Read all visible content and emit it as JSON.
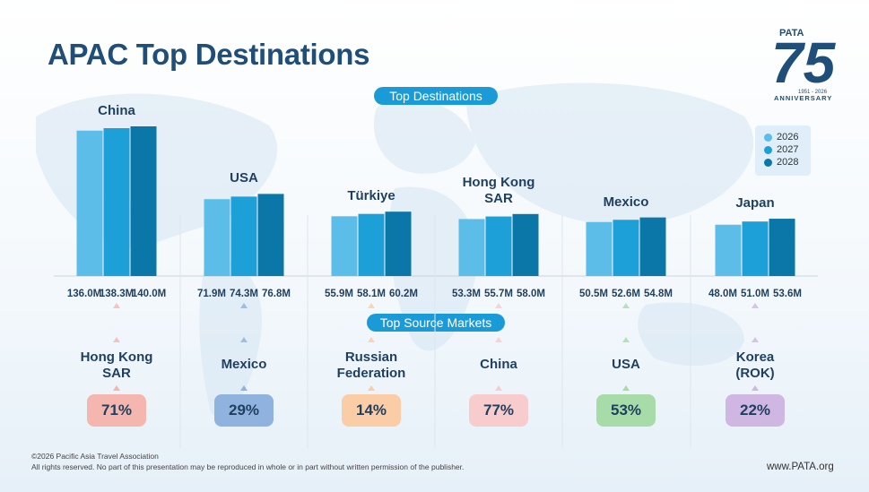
{
  "slide": {
    "title": "APAC Top Destinations",
    "top_destinations_label": "Top Destinations",
    "top_source_markets_label": "Top Source Markets",
    "logo": {
      "brand": "PATA",
      "number": "75",
      "years": "1951 - 2026",
      "word": "ANNIVERSARY"
    },
    "copyright": "©2026 Pacific Asia Travel Association",
    "rights": "All rights reserved. No part of this presentation may be reproduced in whole or in part without written permission of the publisher.",
    "url": "www.PATA.org"
  },
  "chart_data": {
    "type": "bar",
    "categories": [
      "China",
      "USA",
      "Türkiye",
      "Hong Kong\nSAR",
      "Mexico",
      "Japan"
    ],
    "series": [
      {
        "name": "2026",
        "color": "#5bbde8",
        "values": [
          136.0,
          71.9,
          55.9,
          53.3,
          50.5,
          48.0
        ],
        "labels": [
          "136.0M",
          "71.9M",
          "55.9M",
          "53.3M",
          "50.5M",
          "48.0M"
        ]
      },
      {
        "name": "2027",
        "color": "#1d9fd8",
        "values": [
          138.3,
          74.3,
          58.1,
          55.7,
          52.6,
          51.0
        ],
        "labels": [
          "138.3M",
          "74.3M",
          "58.1M",
          "55.7M",
          "52.6M",
          "51.0M"
        ]
      },
      {
        "name": "2028",
        "color": "#0b76a8",
        "values": [
          140.0,
          76.8,
          60.2,
          58.0,
          54.8,
          53.6
        ],
        "labels": [
          "140.0M",
          "76.8M",
          "60.2M",
          "58.0M",
          "54.8M",
          "53.6M"
        ]
      }
    ],
    "ylim": [
      0,
      140
    ],
    "legend_position": "top-right",
    "source_markets": [
      {
        "name": "Hong Kong\nSAR",
        "share": "71%",
        "color": "#f4b6ae"
      },
      {
        "name": "Mexico",
        "share": "29%",
        "color": "#8fb2de"
      },
      {
        "name": "Russian\nFederation",
        "share": "14%",
        "color": "#fbcda7"
      },
      {
        "name": "China",
        "share": "77%",
        "color": "#f8cccc"
      },
      {
        "name": "USA",
        "share": "53%",
        "color": "#a7dca8"
      },
      {
        "name": "Korea\n(ROK)",
        "share": "22%",
        "color": "#cfb6e3"
      }
    ]
  }
}
